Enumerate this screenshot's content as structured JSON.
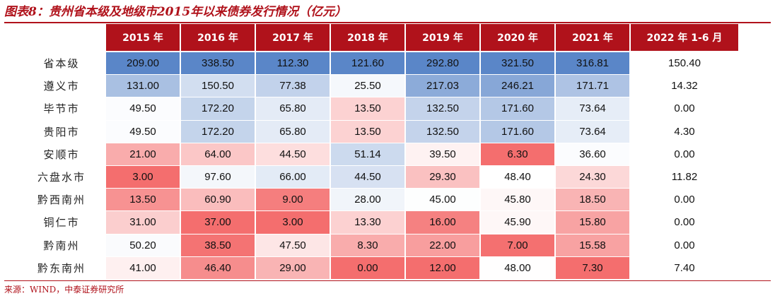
{
  "title": "图表8：贵州省本级及地级市2015年以来债券发行情况（亿元）",
  "source": "来源：WIND，中泰证券研究所",
  "colors": {
    "header": "#b0121b",
    "title": "#b0121b",
    "high": "#5a86c8",
    "mid": "#ffffff",
    "low": "#f46e6e"
  },
  "chart_data": {
    "type": "table",
    "title": "图表8：贵州省本级及地级市2015年以来债券发行情况（亿元）",
    "columns": [
      "2015 年",
      "2016 年",
      "2017 年",
      "2018 年",
      "2019 年",
      "2020 年",
      "2021 年",
      "2022 年 1-6 月"
    ],
    "rows": [
      {
        "name": "省本级",
        "values": [
          "209.00",
          "338.50",
          "112.30",
          "121.60",
          "292.80",
          "321.50",
          "316.81",
          "150.40"
        ]
      },
      {
        "name": "遵义市",
        "values": [
          "131.00",
          "150.50",
          "77.38",
          "25.50",
          "217.03",
          "246.21",
          "171.71",
          "14.32"
        ]
      },
      {
        "name": "毕节市",
        "values": [
          "49.50",
          "172.20",
          "65.80",
          "13.50",
          "132.50",
          "171.60",
          "73.64",
          "0.00"
        ]
      },
      {
        "name": "贵阳市",
        "values": [
          "49.50",
          "172.20",
          "65.80",
          "13.50",
          "132.50",
          "171.60",
          "73.64",
          "4.30"
        ]
      },
      {
        "name": "安顺市",
        "values": [
          "21.00",
          "64.00",
          "44.50",
          "51.14",
          "39.50",
          "6.30",
          "36.60",
          "0.00"
        ]
      },
      {
        "name": "六盘水市",
        "values": [
          "3.00",
          "97.60",
          "66.00",
          "44.50",
          "29.30",
          "48.40",
          "24.30",
          "11.82"
        ]
      },
      {
        "name": "黔西南州",
        "values": [
          "13.50",
          "60.90",
          "9.00",
          "28.00",
          "45.00",
          "45.80",
          "18.50",
          "0.00"
        ]
      },
      {
        "name": "铜仁市",
        "values": [
          "31.00",
          "37.00",
          "3.00",
          "13.30",
          "16.00",
          "45.90",
          "15.80",
          "0.00"
        ]
      },
      {
        "name": "黔南州",
        "values": [
          "50.20",
          "38.50",
          "47.50",
          "8.30",
          "22.00",
          "7.00",
          "15.58",
          "0.00"
        ]
      },
      {
        "name": "黔东南州",
        "values": [
          "41.00",
          "46.40",
          "29.00",
          "0.00",
          "12.00",
          "48.00",
          "7.30",
          "7.40"
        ]
      }
    ]
  }
}
